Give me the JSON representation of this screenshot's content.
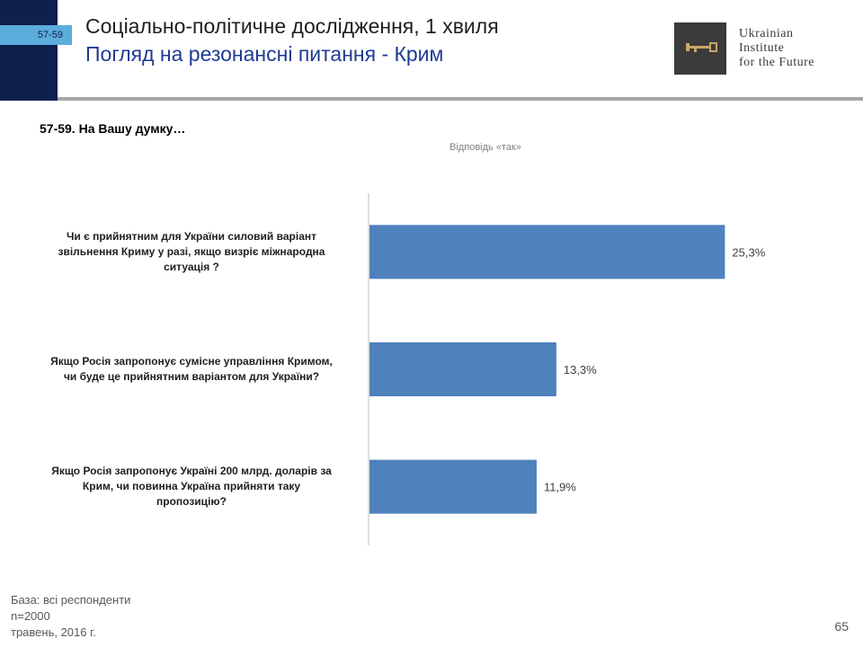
{
  "header": {
    "slide_tag": "57-59",
    "title": "Соціально-політичне дослідження, 1 хвиля",
    "subtitle": "Погляд на резонансні питання - Крим"
  },
  "logo": {
    "icon": "key-icon",
    "lines": [
      "Ukrainian",
      "Institute",
      "for the Future"
    ]
  },
  "question": "57-59. На Вашу думку…",
  "colors": {
    "bar": "#4f81bd",
    "header_band": "#0f1f4e",
    "tag": "#5cacdc",
    "subtitle": "#1f3a93"
  },
  "chart_data": {
    "type": "bar",
    "orientation": "horizontal",
    "categories": [
      "Чи є прийнятним для України силовий варіант звільнення Криму у разі, якщо визріє міжнародна ситуація ?",
      "Якщо Росія запропонує сумісне управління Кримом, чи буде це прийнятним варіантом для України?",
      "Якщо Росія запропонує Україні 200 млрд. доларів за Крим, чи повинна Україна прийняти таку пропозицію?"
    ],
    "category_lines": [
      [
        "Чи є прийнятним для України силовий варіант",
        "звільнення Криму у разі, якщо визріє міжнародна",
        "ситуація ?"
      ],
      [
        "Якщо Росія запропонує сумісне управління Кримом,",
        "чи буде це прийнятним варіантом для України?"
      ],
      [
        "Якщо Росія запропонує Україні 200 млрд. доларів за",
        "Крим, чи повинна Україна прийняти таку",
        "пропозицію?"
      ]
    ],
    "series": [
      {
        "name": "Відповідь «так»",
        "values": [
          25.3,
          13.3,
          11.9
        ]
      }
    ],
    "data_labels": [
      "25,3%",
      "13,3%",
      "11,9%"
    ],
    "xlim": [
      0,
      35
    ],
    "grid": false,
    "legend_position": "top"
  },
  "footer": {
    "lines": [
      "База: всі респонденти",
      "n=2000",
      "травень, 2016 г."
    ]
  },
  "page_number": "65"
}
